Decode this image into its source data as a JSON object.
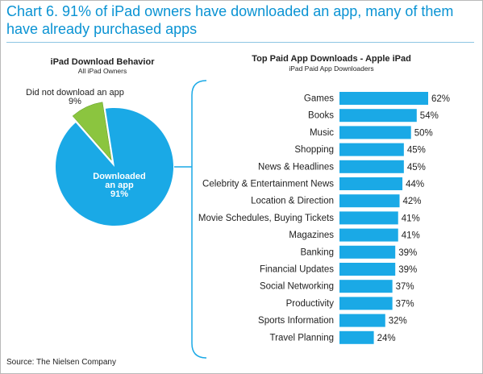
{
  "header": {
    "title": "Chart 6. 91% of iPad owners have downloaded an app, many of them have already purchased apps"
  },
  "footer": {
    "source": "Source: The Nielsen Company"
  },
  "colors": {
    "title": "#0a93d3",
    "accent": "#1aa9e6",
    "secondary": "#8bc53f",
    "text": "#222222"
  },
  "chart_data": [
    {
      "type": "pie",
      "title": "iPad Download Behavior",
      "subtitle": "All iPad Owners",
      "slices": [
        {
          "label": "Downloaded an app",
          "label_lines": [
            "Downloaded",
            "an app"
          ],
          "value": 91,
          "value_label": "91%",
          "color": "#1aa9e6"
        },
        {
          "label": "Did not download an app",
          "label_lines": [
            "Did not download an app"
          ],
          "value": 9,
          "value_label": "9%",
          "color": "#8bc53f"
        }
      ]
    },
    {
      "type": "bar",
      "orientation": "horizontal",
      "title": "Top Paid App Downloads - Apple iPad",
      "subtitle": "iPad Paid App Downloaders",
      "categories": [
        "Games",
        "Books",
        "Music",
        "Shopping",
        "News & Headlines",
        "Celebrity & Entertainment News",
        "Location & Direction",
        "Movie Schedules, Buying Tickets",
        "Magazines",
        "Banking",
        "Financial Updates",
        "Social Networking",
        "Productivity",
        "Sports Information",
        "Travel Planning"
      ],
      "values": [
        62,
        54,
        50,
        45,
        45,
        44,
        42,
        41,
        41,
        39,
        39,
        37,
        37,
        32,
        24
      ],
      "value_labels": [
        "62%",
        "54%",
        "50%",
        "45%",
        "45%",
        "44%",
        "42%",
        "41%",
        "41%",
        "39%",
        "39%",
        "37%",
        "37%",
        "32%",
        "24%"
      ],
      "xlim": [
        0,
        100
      ],
      "color": "#1aa9e6"
    }
  ]
}
